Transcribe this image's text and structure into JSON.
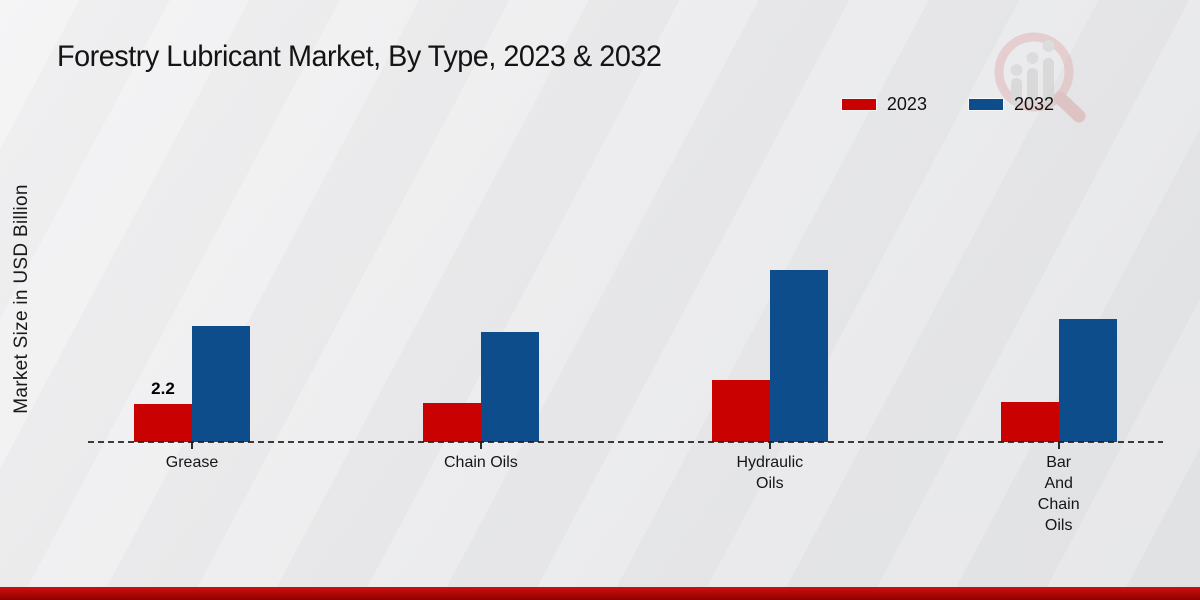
{
  "watermark_icon": "bar-chart-magnifier-logo",
  "footer": {
    "bar_color_top": "#d01010",
    "bar_color_bottom": "#8e0000"
  },
  "chart_data": {
    "type": "bar",
    "title": "Forestry Lubricant Market, By Type, 2023 & 2032",
    "ylabel": "Market Size in USD Billion",
    "xlabel": "",
    "unit": "USD Billion",
    "categories": [
      "Grease",
      "Chain Oils",
      "Hydraulic Oils",
      "Bar And Chain Oils"
    ],
    "category_lines": [
      [
        "Grease"
      ],
      [
        "Chain Oils"
      ],
      [
        "Hydraulic",
        "Oils"
      ],
      [
        "Bar",
        "And",
        "Chain",
        "Oils"
      ]
    ],
    "series": [
      {
        "name": "2023",
        "color": "#c90101",
        "values": [
          2.2,
          2.25,
          3.55,
          2.3
        ],
        "data_labels": [
          "2.2",
          "",
          "",
          ""
        ]
      },
      {
        "name": "2032",
        "color": "#0d4d8c",
        "values": [
          6.65,
          6.3,
          9.9,
          7.05
        ],
        "data_labels": [
          "",
          "",
          "",
          ""
        ]
      }
    ],
    "ylim": [
      0,
      14
    ],
    "yaxis_visible": false,
    "grid": false,
    "baseline_style": "dashed",
    "legend_position": "top-right"
  }
}
